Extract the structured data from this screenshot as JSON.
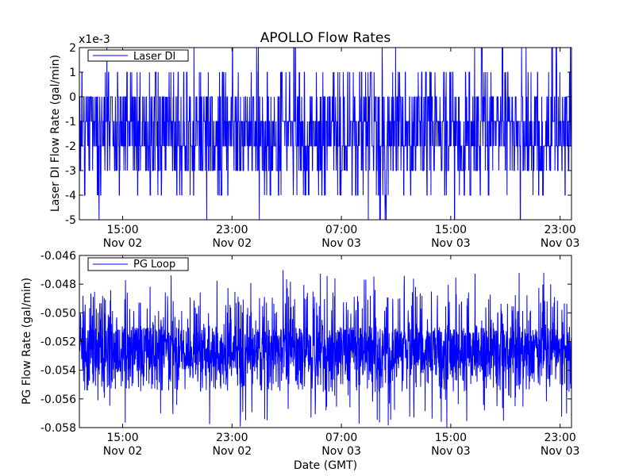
{
  "title": "APOLLO Flow Rates",
  "xlabel": "Date (GMT)",
  "colors": {
    "line": "#0000ff",
    "axis": "#000000",
    "background": "#ffffff"
  },
  "chart_data": [
    {
      "type": "line",
      "ylabel": "Laser DI Flow Rate (gal/min)",
      "offset_label": "x1e-3",
      "ylim": [
        -5,
        2
      ],
      "ytick_labels": [
        "-5",
        "-4",
        "-3",
        "-2",
        "-1",
        "0",
        "1",
        "2"
      ],
      "xtick_labels": [
        [
          "15:00",
          "Nov 02"
        ],
        [
          "23:00",
          "Nov 02"
        ],
        [
          "07:00",
          "Nov 03"
        ],
        [
          "15:00",
          "Nov 03"
        ],
        [
          "23:00",
          "Nov 03"
        ]
      ],
      "xtick_times": [
        "2012-11-02T15:00",
        "2012-11-02T23:00",
        "2012-11-03T07:00",
        "2012-11-03T15:00",
        "2012-11-03T23:00"
      ],
      "xlim": [
        "2012-11-02T11:50",
        "2012-11-03T23:50"
      ],
      "legend": {
        "label": "Laser DI",
        "position": "top-left"
      },
      "series": [
        {
          "name": "Laser DI",
          "levels": [
            -5,
            -4,
            -3,
            -2,
            -1,
            0,
            1,
            2
          ],
          "baseline_band": [
            -2,
            -1
          ],
          "typical_range": [
            -3,
            1
          ]
        }
      ]
    },
    {
      "type": "line",
      "ylabel": "PG Flow Rate (gal/min)",
      "ylim": [
        -0.058,
        -0.046
      ],
      "ytick_labels": [
        "-0.058",
        "-0.056",
        "-0.054",
        "-0.052",
        "-0.050",
        "-0.048",
        "-0.046"
      ],
      "xtick_labels": [
        [
          "15:00",
          "Nov 02"
        ],
        [
          "23:00",
          "Nov 02"
        ],
        [
          "07:00",
          "Nov 03"
        ],
        [
          "15:00",
          "Nov 03"
        ],
        [
          "23:00",
          "Nov 03"
        ]
      ],
      "xtick_times": [
        "2012-11-02T15:00",
        "2012-11-02T23:00",
        "2012-11-03T07:00",
        "2012-11-03T15:00",
        "2012-11-03T23:00"
      ],
      "xlim": [
        "2012-11-02T11:50",
        "2012-11-03T23:50"
      ],
      "legend": {
        "label": "PG Loop",
        "position": "top-left"
      },
      "series": [
        {
          "name": "PG Loop",
          "baseline_band": [
            -0.054,
            -0.051
          ],
          "typical_range": [
            -0.056,
            -0.049
          ],
          "extremes": [
            -0.058,
            -0.047
          ]
        }
      ]
    }
  ]
}
